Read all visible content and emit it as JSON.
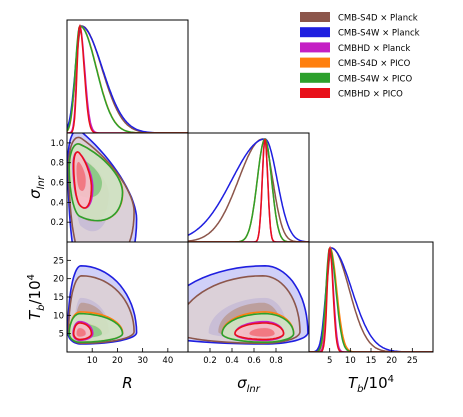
{
  "chart_data": {
    "type": "corner",
    "title": "",
    "parameters": [
      {
        "id": "R",
        "label": "R",
        "range": [
          0,
          48
        ],
        "ticks": [
          10,
          20,
          30,
          40
        ]
      },
      {
        "id": "sigma",
        "label_main": "σ",
        "label_sub": "lnr",
        "range": [
          0,
          1.1
        ],
        "ticks": [
          0.2,
          0.4,
          0.6,
          0.8
        ]
      },
      {
        "id": "Tb",
        "label_main": "T",
        "label_sub": "b",
        "label_suffix": "/10",
        "label_sup": "4",
        "range": [
          0,
          30
        ],
        "ticks": [
          5,
          10,
          15,
          20,
          25
        ]
      }
    ],
    "sigma_yticks": [
      0.2,
      0.4,
      0.6,
      0.8,
      1.0
    ],
    "Tb_yticks": [
      5,
      10,
      15,
      20,
      25
    ],
    "legend_position": "top-right",
    "series": [
      {
        "name": "CMB-S4D × Planck",
        "color": "#8c564b",
        "R": {
          "peak": 5.8,
          "sl": 2.2,
          "sr": 8.0
        },
        "sigma": {
          "peak": 0.68,
          "sl": 0.22,
          "sr": 0.09,
          "floor": 0.05
        },
        "Tb": {
          "peak": 5.5,
          "sl": 1.2,
          "sr": 4.2
        }
      },
      {
        "name": "CMB-S4W × Planck",
        "color": "#1f1fe0",
        "R": {
          "peak": 5.5,
          "sl": 2.2,
          "sr": 8.5
        },
        "sigma": {
          "peak": 0.7,
          "sl": 0.3,
          "sr": 0.11,
          "floor": 0.12
        },
        "Tb": {
          "peak": 5.3,
          "sl": 1.2,
          "sr": 5.0
        }
      },
      {
        "name": "CMBHD × Planck",
        "color": "#c41fc4",
        "R": {
          "peak": 5.0,
          "sl": 1.1,
          "sr": 2.0
        },
        "sigma": {
          "peak": 0.7,
          "sl": 0.025,
          "sr": 0.025,
          "floor": 0.0
        },
        "Tb": {
          "peak": 5.0,
          "sl": 0.7,
          "sr": 0.9
        }
      },
      {
        "name": "CMB-S4D × PICO",
        "color": "#ff7f0e",
        "R": {
          "peak": 5.2,
          "sl": 1.8,
          "sr": 6.5
        },
        "sigma": {
          "peak": 0.7,
          "sl": 0.07,
          "sr": 0.06,
          "floor": 0.0
        },
        "Tb": {
          "peak": 5.1,
          "sl": 0.9,
          "sr": 1.6
        }
      },
      {
        "name": "CMB-S4W × PICO",
        "color": "#2ca02c",
        "R": {
          "peak": 5.1,
          "sl": 1.8,
          "sr": 6.5
        },
        "sigma": {
          "peak": 0.7,
          "sl": 0.07,
          "sr": 0.06,
          "floor": 0.0
        },
        "Tb": {
          "peak": 5.0,
          "sl": 0.9,
          "sr": 1.5
        }
      },
      {
        "name": "CMBHD × PICO",
        "color": "#e8101a",
        "R": {
          "peak": 5.0,
          "sl": 1.0,
          "sr": 1.8
        },
        "sigma": {
          "peak": 0.7,
          "sl": 0.025,
          "sr": 0.025,
          "floor": 0.0
        },
        "Tb": {
          "peak": 5.0,
          "sl": 0.6,
          "sr": 0.8
        }
      }
    ]
  }
}
